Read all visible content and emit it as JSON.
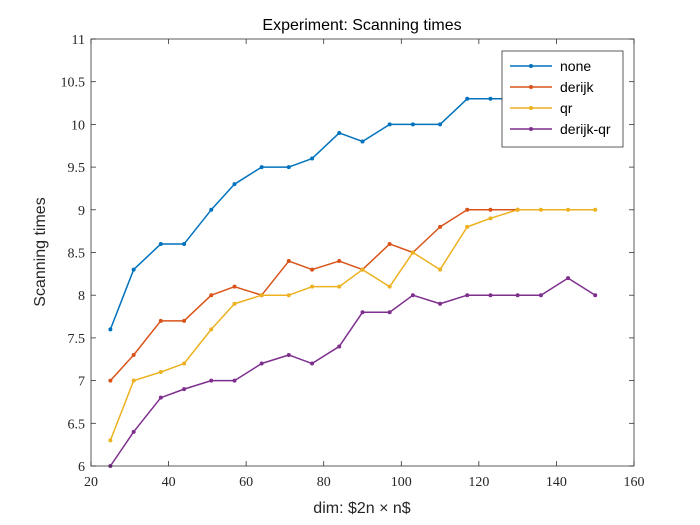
{
  "chart_data": {
    "type": "line",
    "title": "Experiment: Scanning times",
    "xlabel": "dim: $2n × n$",
    "ylabel": "Scanning times",
    "xlim": [
      20,
      160
    ],
    "ylim": [
      6,
      11
    ],
    "xticks": [
      "20",
      "40",
      "60",
      "80",
      "100",
      "120",
      "140",
      "160"
    ],
    "yticks": [
      "6",
      "6.5",
      "7",
      "7.5",
      "8",
      "8.5",
      "9",
      "9.5",
      "10",
      "10.5",
      "11"
    ],
    "grid": false,
    "legend_position": "top-right",
    "series": [
      {
        "name": "none",
        "color": "#0072BD",
        "x": [
          25,
          31,
          38,
          44,
          51,
          57,
          64,
          71,
          77,
          84,
          90,
          97,
          103,
          110,
          117,
          123,
          130
        ],
        "y": [
          7.6,
          8.3,
          8.6,
          8.6,
          9.0,
          9.3,
          9.5,
          9.5,
          9.6,
          9.9,
          9.8,
          10.0,
          10.0,
          10.0,
          10.3,
          10.3,
          10.3
        ]
      },
      {
        "name": "derijk",
        "color": "#D95319",
        "x": [
          25,
          31,
          38,
          44,
          51,
          57,
          64,
          71,
          77,
          84,
          90,
          97,
          103,
          110,
          117,
          123,
          130
        ],
        "y": [
          7.0,
          7.3,
          7.7,
          7.7,
          8.0,
          8.1,
          8.0,
          8.4,
          8.3,
          8.4,
          8.3,
          8.6,
          8.5,
          8.8,
          9.0,
          9.0,
          9.0
        ]
      },
      {
        "name": "qr",
        "color": "#EDB120",
        "x": [
          25,
          31,
          38,
          44,
          51,
          57,
          64,
          71,
          77,
          84,
          90,
          97,
          103,
          110,
          117,
          123,
          130,
          136,
          143,
          150
        ],
        "y": [
          6.3,
          7.0,
          7.1,
          7.2,
          7.6,
          7.9,
          8.0,
          8.0,
          8.1,
          8.1,
          8.3,
          8.1,
          8.5,
          8.3,
          8.8,
          8.9,
          9.0,
          9.0,
          9.0,
          9.0
        ]
      },
      {
        "name": "derijk-qr",
        "color": "#7E2F8E",
        "x": [
          25,
          31,
          38,
          44,
          51,
          57,
          64,
          71,
          77,
          84,
          90,
          97,
          103,
          110,
          117,
          123,
          130,
          136,
          143,
          150
        ],
        "y": [
          6.0,
          6.4,
          6.8,
          6.9,
          7.0,
          7.0,
          7.2,
          7.3,
          7.2,
          7.4,
          7.8,
          7.8,
          8.0,
          7.9,
          8.0,
          8.0,
          8.0,
          8.0,
          8.2,
          8.0
        ]
      }
    ]
  }
}
